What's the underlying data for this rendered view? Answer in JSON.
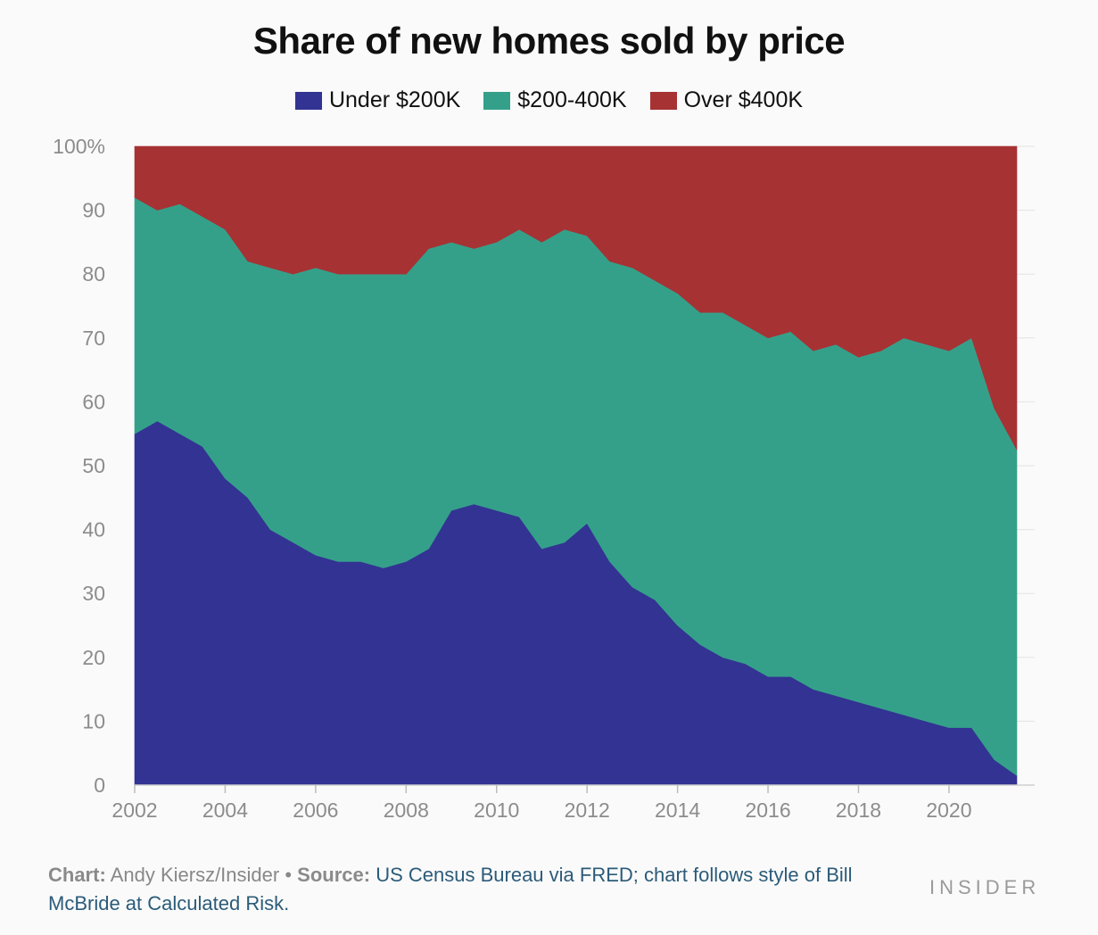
{
  "chart_data": {
    "type": "area",
    "stacked": true,
    "title": "Share of new homes sold by price",
    "xlim": [
      2002.0,
      2021.5
    ],
    "ylim": [
      0,
      100
    ],
    "x_ticks": [
      "2002",
      "2004",
      "2006",
      "2008",
      "2010",
      "2012",
      "2014",
      "2016",
      "2018",
      "2020"
    ],
    "y_ticks": [
      "0",
      "10",
      "20",
      "30",
      "40",
      "50",
      "60",
      "70",
      "80",
      "90",
      "100%"
    ],
    "grid": true,
    "legend_position": "top",
    "x": [
      2002.0,
      2002.5,
      2003.0,
      2003.5,
      2004.0,
      2004.5,
      2005.0,
      2005.5,
      2006.0,
      2006.5,
      2007.0,
      2007.5,
      2008.0,
      2008.5,
      2009.0,
      2009.5,
      2010.0,
      2010.5,
      2011.0,
      2011.5,
      2012.0,
      2012.5,
      2013.0,
      2013.5,
      2014.0,
      2014.5,
      2015.0,
      2015.5,
      2016.0,
      2016.5,
      2017.0,
      2017.5,
      2018.0,
      2018.5,
      2019.0,
      2019.5,
      2020.0,
      2020.5,
      2021.0,
      2021.5
    ],
    "series": [
      {
        "name": "Under $200K",
        "color": "#333393",
        "values": [
          55,
          57,
          55,
          53,
          48,
          45,
          40,
          38,
          36,
          35,
          35,
          34,
          35,
          37,
          43,
          44,
          43,
          42,
          37,
          38,
          41,
          35,
          31,
          29,
          25,
          22,
          20,
          19,
          17,
          17,
          15,
          14,
          13,
          12,
          11,
          10,
          9,
          9,
          4,
          1.5
        ]
      },
      {
        "name": "$200-400K",
        "color": "#35a08a",
        "values": [
          37,
          33,
          36,
          36,
          39,
          37,
          41,
          42,
          45,
          45,
          45,
          46,
          45,
          47,
          42,
          40,
          42,
          45,
          48,
          49,
          45,
          47,
          50,
          50,
          52,
          52,
          54,
          53,
          53,
          54,
          53,
          55,
          54,
          56,
          59,
          59,
          59,
          61,
          55,
          51
        ]
      },
      {
        "name": "Over $400K",
        "color": "#a63234",
        "values": [
          8,
          10,
          9,
          11,
          13,
          18,
          19,
          20,
          19,
          20,
          20,
          20,
          20,
          16,
          15,
          16,
          15,
          13,
          15,
          13,
          14,
          18,
          19,
          21,
          23,
          26,
          26,
          28,
          30,
          29,
          32,
          31,
          33,
          32,
          30,
          31,
          32,
          30,
          41,
          47.5
        ]
      }
    ]
  },
  "legend": {
    "items": [
      {
        "label": "Under $200K",
        "color": "#333393"
      },
      {
        "label": "$200-400K",
        "color": "#35a08a"
      },
      {
        "label": "Over $400K",
        "color": "#a63234"
      }
    ]
  },
  "footer": {
    "chart_label": "Chart:",
    "chart_author": "Andy Kiersz/Insider",
    "separator": "•",
    "source_label": "Source:",
    "source_text": "US Census Bureau via FRED; chart follows style of Bill McBride at Calculated Risk."
  },
  "brand": "INSIDER"
}
